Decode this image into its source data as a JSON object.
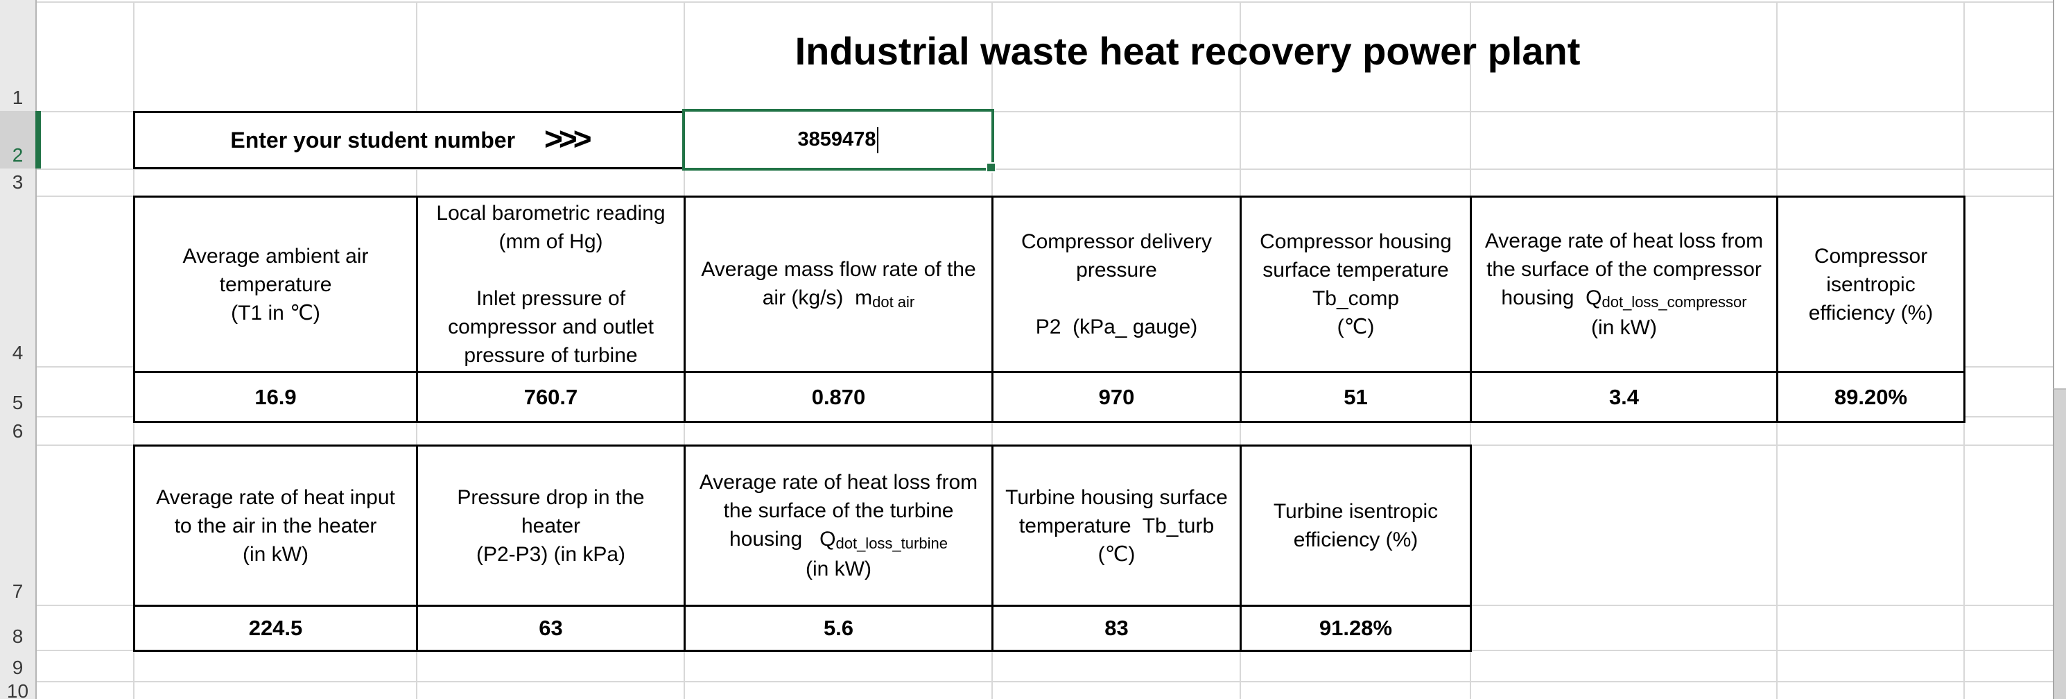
{
  "title": "Industrial waste heat recovery power plant",
  "student_row": {
    "prompt": "Enter your student number",
    "arrows": ">>>",
    "value": "3859478"
  },
  "rows": {
    "numbers": [
      "1",
      "2",
      "3",
      "4",
      "5",
      "6",
      "7",
      "8",
      "9",
      "10"
    ],
    "selected": "2"
  },
  "table1": {
    "headers": [
      [
        {
          "t": "Average ambient air\ntemperature\n(T1 in ℃)"
        }
      ],
      [
        {
          "t": "Local barometric reading\n(mm of Hg)\n\nInlet pressure of\ncompressor and outlet\npressure of turbine"
        }
      ],
      [
        {
          "t": "Average mass flow rate of the\nair (kg/s)  m"
        },
        {
          "s": "dot air"
        }
      ],
      [
        {
          "t": "Compressor delivery\npressure\n\nP2  (kPa_ gauge)"
        }
      ],
      [
        {
          "t": "Compressor housing\nsurface temperature\nTb_comp\n(℃)"
        }
      ],
      [
        {
          "t": "Average rate of heat loss from\nthe surface of the compressor\nhousing  Q"
        },
        {
          "s": "dot_loss_compressor"
        },
        {
          "t": "\n(in kW)"
        }
      ],
      [
        {
          "t": "Compressor\nisentropic\nefficiency (%)"
        }
      ]
    ],
    "values": [
      "16.9",
      "760.7",
      "0.870",
      "970",
      "51",
      "3.4",
      "89.20%"
    ]
  },
  "table2": {
    "headers": [
      [
        {
          "t": "Average rate of heat input\nto the air in the heater\n(in kW)"
        }
      ],
      [
        {
          "t": "Pressure drop in the\nheater\n(P2-P3) (in kPa)"
        }
      ],
      [
        {
          "t": "Average rate of heat loss from\nthe surface of the turbine\nhousing   Q"
        },
        {
          "s": "dot_loss_turbine"
        },
        {
          "t": "\n(in kW)"
        }
      ],
      [
        {
          "t": "Turbine housing surface\ntemperature  Tb_turb\n(℃)"
        }
      ],
      [
        {
          "t": "Turbine isentropic\nefficiency (%)"
        }
      ]
    ],
    "values": [
      "224.5",
      "63",
      "5.6",
      "83",
      "91.28%"
    ]
  },
  "colors": {
    "excel_green": "#217346",
    "gridline": "#d8d8d8",
    "row_header_bg": "#e9e9e9",
    "row_header_selected_bg": "#d2d2d2",
    "table_border": "#000000",
    "scrollbar_gray": "#d2d2d2"
  }
}
